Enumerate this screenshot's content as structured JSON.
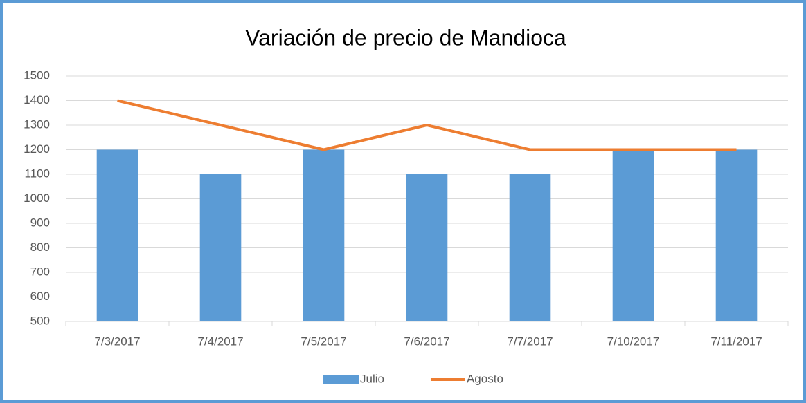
{
  "chart_data": {
    "type": "bar",
    "title": "Variación de precio de Mandioca",
    "categories": [
      "7/3/2017",
      "7/4/2017",
      "7/5/2017",
      "7/6/2017",
      "7/7/2017",
      "7/10/2017",
      "7/11/2017"
    ],
    "series": [
      {
        "name": "Julio",
        "type": "bar",
        "color": "#5b9bd5",
        "values": [
          1200,
          1100,
          1200,
          1100,
          1100,
          1200,
          1200
        ]
      },
      {
        "name": "Agosto",
        "type": "line",
        "color": "#ed7d31",
        "values": [
          1400,
          1300,
          1200,
          1300,
          1200,
          1200,
          1200
        ]
      }
    ],
    "ylim": [
      500,
      1500
    ],
    "yticks": [
      500,
      600,
      700,
      800,
      900,
      1000,
      1100,
      1200,
      1300,
      1400,
      1500
    ],
    "grid": true,
    "legend": "bottom"
  }
}
